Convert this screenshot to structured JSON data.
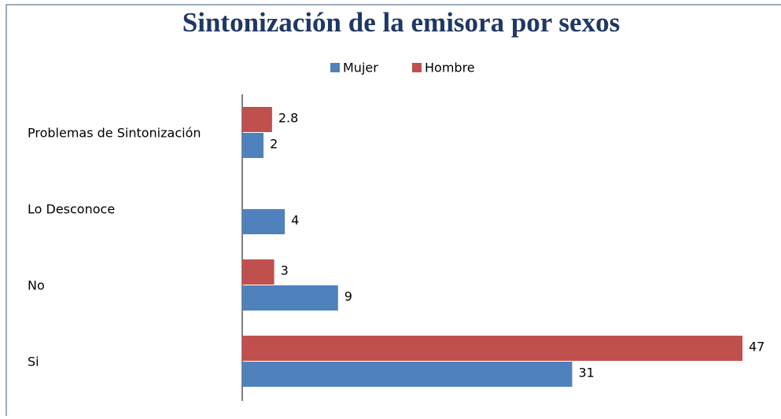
{
  "chart_data": {
    "type": "bar",
    "orientation": "horizontal",
    "title": "Sintonización de la emisora por sexos",
    "categories": [
      "Problemas de Sintonización",
      "Lo Desconoce",
      "No",
      "Si"
    ],
    "series": [
      {
        "name": "Mujer",
        "color": "#4f81bd",
        "values": [
          2,
          4,
          9,
          31
        ]
      },
      {
        "name": "Hombre",
        "color": "#c0504d",
        "values": [
          2.8,
          null,
          3,
          47
        ]
      }
    ],
    "xlim": [
      0,
      47
    ],
    "legend": "top"
  }
}
